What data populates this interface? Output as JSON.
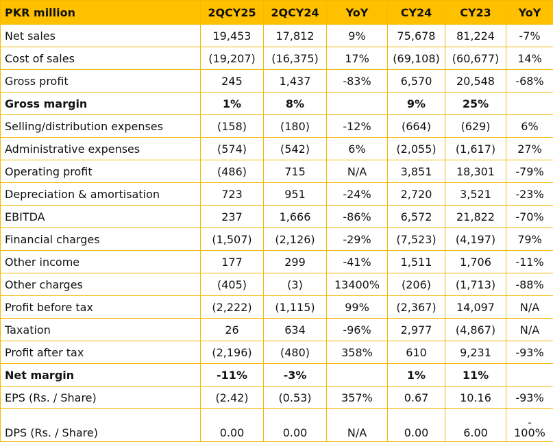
{
  "header": {
    "label": "PKR million",
    "columns": [
      "2QCY25",
      "2QCY24",
      "YoY",
      "CY24",
      "CY23",
      "YoY"
    ]
  },
  "rows": [
    {
      "label": "Net sales",
      "values": [
        "19,453",
        "17,812",
        "9%",
        "75,678",
        "81,224",
        "-7%"
      ]
    },
    {
      "label": "Cost of sales",
      "values": [
        "(19,207)",
        "(16,375)",
        "17%",
        "(69,108)",
        "(60,677)",
        "14%"
      ]
    },
    {
      "label": "Gross profit",
      "values": [
        "245",
        "1,437",
        "-83%",
        "6,570",
        "20,548",
        "-68%"
      ]
    },
    {
      "label": "Gross margin",
      "values": [
        "1%",
        "8%",
        "",
        "9%",
        "25%",
        ""
      ]
    },
    {
      "label": "Selling/distribution expenses",
      "values": [
        "(158)",
        "(180)",
        "-12%",
        "(664)",
        "(629)",
        "6%"
      ]
    },
    {
      "label": "Administrative expenses",
      "values": [
        "(574)",
        "(542)",
        "6%",
        "(2,055)",
        "(1,617)",
        "27%"
      ]
    },
    {
      "label": "Operating profit",
      "values": [
        "(486)",
        "715",
        "N/A",
        "3,851",
        "18,301",
        "-79%"
      ]
    },
    {
      "label": "Depreciation & amortisation",
      "values": [
        "723",
        "951",
        "-24%",
        "2,720",
        "3,521",
        "-23%"
      ]
    },
    {
      "label": "EBITDA",
      "values": [
        "237",
        "1,666",
        "-86%",
        "6,572",
        "21,822",
        "-70%"
      ]
    },
    {
      "label": "Financial charges",
      "values": [
        "(1,507)",
        "(2,126)",
        "-29%",
        "(7,523)",
        "(4,197)",
        "79%"
      ]
    },
    {
      "label": "Other income",
      "values": [
        "177",
        "299",
        "-41%",
        "1,511",
        "1,706",
        "-11%"
      ]
    },
    {
      "label": "Other charges",
      "values": [
        "(405)",
        "(3)",
        "13400%",
        "(206)",
        "(1,713)",
        "-88%"
      ]
    },
    {
      "label": "Profit before tax",
      "values": [
        "(2,222)",
        "(1,115)",
        "99%",
        "(2,367)",
        "14,097",
        "N/A"
      ]
    },
    {
      "label": "Taxation",
      "values": [
        "26",
        "634",
        "-96%",
        "2,977",
        "(4,867)",
        "N/A"
      ]
    },
    {
      "label": "Profit after tax",
      "values": [
        "(2,196)",
        "(480)",
        "358%",
        "610",
        "9,231",
        "-93%"
      ]
    },
    {
      "label": "Net margin",
      "values": [
        "-11%",
        "-3%",
        "",
        "1%",
        "11%",
        ""
      ]
    },
    {
      "label": "EPS (Rs. / Share)",
      "values": [
        "(2.42)",
        "(0.53)",
        "357%",
        "0.67",
        "10.16",
        "-93%"
      ]
    },
    {
      "label": "DPS (Rs. / Share)",
      "values": [
        "0.00",
        "0.00",
        "N/A",
        "0.00",
        "6.00",
        "-100%"
      ]
    }
  ],
  "dps_yoy_lines": [
    "-",
    "100%"
  ],
  "colors": {
    "header_bg": "#ffc000",
    "border": "#f5b800"
  }
}
